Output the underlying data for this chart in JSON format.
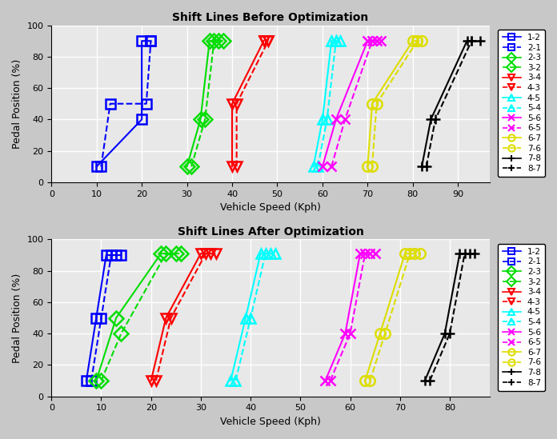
{
  "title_before": "Shift Lines Before Optimization",
  "title_after": "Shift Lines After Optimization",
  "xlabel": "Vehicle Speed (Kph)",
  "ylabel": "Pedal Position (%)",
  "before": {
    "1-2": {
      "x": [
        10,
        20,
        20,
        22
      ],
      "y": [
        10,
        40,
        90,
        90
      ],
      "color": "blue",
      "ls": "-",
      "marker": "s"
    },
    "2-1": {
      "x": [
        11,
        13,
        21,
        22
      ],
      "y": [
        10,
        50,
        50,
        90
      ],
      "color": "blue",
      "ls": "--",
      "marker": "s"
    },
    "2-3": {
      "x": [
        30,
        33,
        35,
        37
      ],
      "y": [
        10,
        40,
        90,
        90
      ],
      "color": "#00dd00",
      "ls": "-",
      "marker": "D"
    },
    "3-2": {
      "x": [
        31,
        34,
        36,
        38
      ],
      "y": [
        10,
        40,
        90,
        90
      ],
      "color": "#00dd00",
      "ls": "--",
      "marker": "D"
    },
    "3-4": {
      "x": [
        40,
        40,
        47,
        47
      ],
      "y": [
        10,
        50,
        90,
        90
      ],
      "color": "red",
      "ls": "-",
      "marker": "v"
    },
    "4-3": {
      "x": [
        41,
        41,
        48,
        48
      ],
      "y": [
        10,
        50,
        90,
        90
      ],
      "color": "red",
      "ls": "--",
      "marker": "v"
    },
    "4-5": {
      "x": [
        58,
        60,
        62,
        63
      ],
      "y": [
        10,
        40,
        90,
        90
      ],
      "color": "cyan",
      "ls": "-",
      "marker": "^"
    },
    "5-4": {
      "x": [
        59,
        61,
        63,
        64
      ],
      "y": [
        10,
        40,
        90,
        90
      ],
      "color": "cyan",
      "ls": "--",
      "marker": "^"
    },
    "5-6": {
      "x": [
        60,
        63,
        70,
        72
      ],
      "y": [
        10,
        40,
        90,
        90
      ],
      "color": "magenta",
      "ls": "-",
      "marker": "x"
    },
    "6-5": {
      "x": [
        62,
        65,
        71,
        73
      ],
      "y": [
        10,
        40,
        90,
        90
      ],
      "color": "magenta",
      "ls": "--",
      "marker": "x"
    },
    "6-7": {
      "x": [
        70,
        71,
        80,
        81
      ],
      "y": [
        10,
        50,
        90,
        90
      ],
      "color": "#dddd00",
      "ls": "-",
      "marker": "o"
    },
    "7-6": {
      "x": [
        71,
        72,
        81,
        82
      ],
      "y": [
        10,
        50,
        90,
        90
      ],
      "color": "#dddd00",
      "ls": "--",
      "marker": "o"
    },
    "7-8": {
      "x": [
        82,
        84,
        92,
        93
      ],
      "y": [
        10,
        40,
        90,
        90
      ],
      "color": "black",
      "ls": "-",
      "marker": "+"
    },
    "8-7": {
      "x": [
        83,
        85,
        93,
        95
      ],
      "y": [
        10,
        40,
        90,
        90
      ],
      "color": "black",
      "ls": "--",
      "marker": "+"
    }
  },
  "after": {
    "1-2": {
      "x": [
        7,
        9,
        11,
        13
      ],
      "y": [
        10,
        50,
        90,
        90
      ],
      "color": "blue",
      "ls": "-",
      "marker": "s"
    },
    "2-1": {
      "x": [
        8,
        10,
        12,
        14
      ],
      "y": [
        10,
        50,
        90,
        90
      ],
      "color": "blue",
      "ls": "--",
      "marker": "s"
    },
    "2-3": {
      "x": [
        9,
        13,
        22,
        25
      ],
      "y": [
        10,
        50,
        91,
        91
      ],
      "color": "#00dd00",
      "ls": "-",
      "marker": "D"
    },
    "3-2": {
      "x": [
        10,
        14,
        23,
        26
      ],
      "y": [
        10,
        40,
        91,
        91
      ],
      "color": "#00dd00",
      "ls": "--",
      "marker": "D"
    },
    "3-4": {
      "x": [
        20,
        23,
        30,
        32
      ],
      "y": [
        10,
        50,
        91,
        91
      ],
      "color": "red",
      "ls": "-",
      "marker": "v"
    },
    "4-3": {
      "x": [
        21,
        24,
        31,
        33
      ],
      "y": [
        10,
        50,
        91,
        91
      ],
      "color": "red",
      "ls": "--",
      "marker": "v"
    },
    "4-5": {
      "x": [
        36,
        39,
        42,
        44
      ],
      "y": [
        10,
        50,
        91,
        91
      ],
      "color": "cyan",
      "ls": "-",
      "marker": "^"
    },
    "5-4": {
      "x": [
        37,
        40,
        43,
        45
      ],
      "y": [
        10,
        50,
        91,
        91
      ],
      "color": "cyan",
      "ls": "--",
      "marker": "^"
    },
    "5-6": {
      "x": [
        55,
        59,
        62,
        64
      ],
      "y": [
        10,
        40,
        91,
        91
      ],
      "color": "magenta",
      "ls": "-",
      "marker": "x"
    },
    "6-5": {
      "x": [
        56,
        60,
        63,
        65
      ],
      "y": [
        10,
        40,
        91,
        91
      ],
      "color": "magenta",
      "ls": "--",
      "marker": "x"
    },
    "6-7": {
      "x": [
        63,
        66,
        71,
        73
      ],
      "y": [
        10,
        40,
        91,
        91
      ],
      "color": "#dddd00",
      "ls": "-",
      "marker": "o"
    },
    "7-6": {
      "x": [
        64,
        67,
        72,
        74
      ],
      "y": [
        10,
        40,
        91,
        91
      ],
      "color": "#dddd00",
      "ls": "--",
      "marker": "o"
    },
    "7-8": {
      "x": [
        75,
        79,
        82,
        84
      ],
      "y": [
        10,
        40,
        91,
        91
      ],
      "color": "black",
      "ls": "-",
      "marker": "+"
    },
    "8-7": {
      "x": [
        76,
        80,
        83,
        85
      ],
      "y": [
        10,
        40,
        91,
        91
      ],
      "color": "black",
      "ls": "--",
      "marker": "+"
    }
  },
  "legend_order": [
    "1-2",
    "2-1",
    "2-3",
    "3-2",
    "3-4",
    "4-3",
    "4-5",
    "5-4",
    "5-6",
    "6-5",
    "6-7",
    "7-6",
    "7-8",
    "8-7"
  ],
  "before_xlim": [
    0,
    97
  ],
  "after_xlim": [
    0,
    88
  ],
  "ylim": [
    0,
    100
  ],
  "xticks_before": [
    0,
    10,
    20,
    30,
    40,
    50,
    60,
    70,
    80,
    90
  ],
  "xticks_after": [
    0,
    10,
    20,
    30,
    40,
    50,
    60,
    70,
    80
  ],
  "yticks": [
    0,
    20,
    40,
    60,
    80,
    100
  ],
  "bg_color": "#e8e8e8",
  "grid_color": "white",
  "fig_bg": "#c8c8c8"
}
